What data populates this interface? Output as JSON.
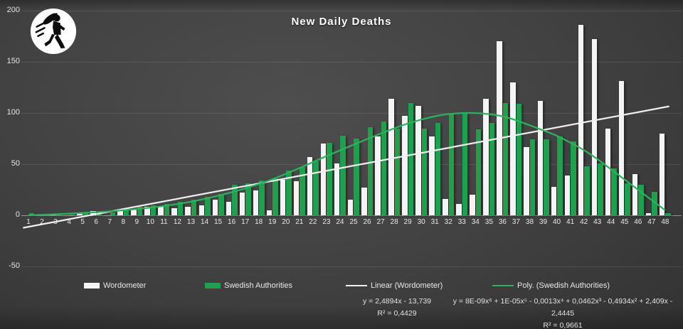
{
  "title": "New Daily Deaths",
  "logo": {
    "name": "walking-figure-badge"
  },
  "legend": {
    "items": [
      {
        "label": "Wordometer",
        "swatch": "bar",
        "color": "#f4f4f4"
      },
      {
        "label": "Swedish Authorities",
        "swatch": "bar",
        "color": "#1ea04f"
      },
      {
        "label": "Linear (Wordometer)",
        "swatch": "line",
        "color": "#f0f0f0"
      },
      {
        "label": "Poly. (Swedish Authorities)",
        "swatch": "line",
        "color": "#28b35c"
      }
    ]
  },
  "equations": {
    "linear": {
      "formula": "y = 2,4894x - 13,739",
      "r2": "R² = 0,4429"
    },
    "poly": {
      "formula": "y = 8E-09x⁶ + 1E-05x⁵ - 0,0013x⁴ + 0,0462x³ - 0,4934x² + 2,409x - 2,4445",
      "r2": "R² = 0,9661"
    }
  },
  "chart_data": {
    "type": "bar",
    "title": "New Daily Deaths",
    "categories": [
      1,
      2,
      3,
      4,
      5,
      6,
      7,
      8,
      9,
      10,
      11,
      12,
      13,
      14,
      15,
      16,
      17,
      18,
      19,
      20,
      21,
      22,
      23,
      24,
      25,
      26,
      27,
      28,
      29,
      30,
      31,
      32,
      33,
      34,
      35,
      36,
      37,
      38,
      39,
      40,
      41,
      42,
      43,
      44,
      45,
      46,
      47,
      48
    ],
    "series": [
      {
        "name": "Wordometer",
        "color": "#f4f4f4",
        "values": [
          0,
          0,
          1,
          0,
          2,
          4,
          0,
          5,
          6,
          8,
          9,
          7,
          8,
          10,
          15,
          13,
          22,
          24,
          5,
          35,
          33,
          57,
          70,
          51,
          15,
          27,
          77,
          114,
          97,
          107,
          77,
          16,
          11,
          20,
          114,
          170,
          130,
          67,
          112,
          28,
          39,
          186,
          172,
          85,
          131,
          40,
          2,
          80
        ]
      },
      {
        "name": "Swedish Authorities",
        "color": "#1ea04f",
        "values": [
          2,
          1,
          1,
          1,
          2,
          2,
          3,
          7,
          8,
          10,
          11,
          13,
          15,
          18,
          21,
          30,
          31,
          34,
          36,
          44,
          47,
          53,
          71,
          78,
          75,
          86,
          92,
          85,
          110,
          85,
          90,
          100,
          99,
          84,
          90,
          110,
          109,
          74,
          74,
          77,
          72,
          48,
          51,
          46,
          31,
          30,
          23,
          2
        ]
      }
    ],
    "trendlines": [
      {
        "name": "Linear (Wordometer)",
        "kind": "linear",
        "color": "#f0f0f0",
        "slope": 2.4894,
        "intercept": -13.739,
        "equation": "y = 2,4894x - 13,739",
        "r2": "R² = 0,4429"
      },
      {
        "name": "Poly. (Swedish Authorities)",
        "kind": "polynomial",
        "color": "#28b35c",
        "equation": "y = 8E-09x⁶ + 1E-05x⁵ - 0,0013x⁴ + 0,0462x³ - 0,4934x² + 2,409x - 2,4445",
        "r2": "R² = 0,9661",
        "points": [
          [
            1,
            0
          ],
          [
            3,
            1
          ],
          [
            5,
            2.3
          ],
          [
            7,
            3.8
          ],
          [
            9,
            6
          ],
          [
            11,
            9
          ],
          [
            13,
            13
          ],
          [
            15,
            19
          ],
          [
            17,
            26
          ],
          [
            19,
            35
          ],
          [
            21,
            46
          ],
          [
            23,
            58
          ],
          [
            25,
            69
          ],
          [
            27,
            80
          ],
          [
            29,
            90
          ],
          [
            31,
            97
          ],
          [
            32,
            99
          ],
          [
            33,
            100
          ],
          [
            34,
            100
          ],
          [
            35,
            99
          ],
          [
            36,
            97
          ],
          [
            37,
            93
          ],
          [
            38,
            88
          ],
          [
            39,
            83
          ],
          [
            40,
            78
          ],
          [
            41,
            71
          ],
          [
            42,
            64
          ],
          [
            43,
            55
          ],
          [
            44,
            45
          ],
          [
            45,
            35
          ],
          [
            46,
            25
          ],
          [
            47,
            15
          ],
          [
            48,
            5
          ]
        ]
      }
    ],
    "ylim": [
      -50,
      200
    ],
    "y_ticks": [
      200,
      150,
      100,
      50,
      0,
      -50
    ],
    "xlabel": "",
    "ylabel": "",
    "grid": true,
    "legend_position": "bottom"
  }
}
